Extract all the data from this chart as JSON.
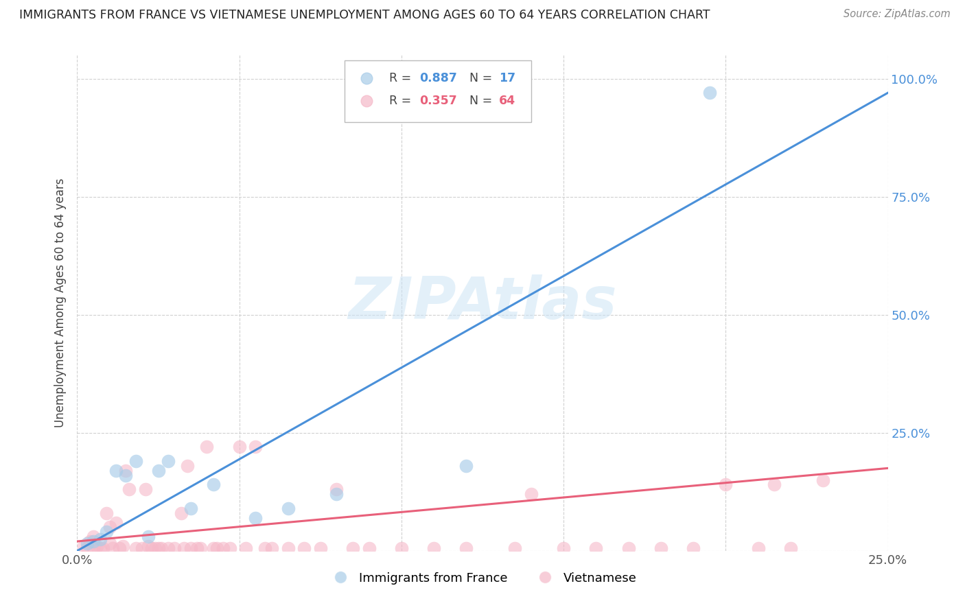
{
  "title": "IMMIGRANTS FROM FRANCE VS VIETNAMESE UNEMPLOYMENT AMONG AGES 60 TO 64 YEARS CORRELATION CHART",
  "source": "Source: ZipAtlas.com",
  "ylabel": "Unemployment Among Ages 60 to 64 years",
  "xlim": [
    0.0,
    0.25
  ],
  "ylim": [
    0.0,
    1.05
  ],
  "yticks": [
    0.0,
    0.25,
    0.5,
    0.75,
    1.0
  ],
  "ytick_labels": [
    "",
    "25.0%",
    "50.0%",
    "75.0%",
    "100.0%"
  ],
  "xticks": [
    0.0,
    0.05,
    0.1,
    0.15,
    0.2,
    0.25
  ],
  "xtick_labels": [
    "0.0%",
    "",
    "",
    "",
    "",
    "25.0%"
  ],
  "legend_label1": "Immigrants from France",
  "legend_label2": "Vietnamese",
  "legend_R1": "0.887",
  "legend_N1": "17",
  "legend_R2": "0.357",
  "legend_N2": "64",
  "color_france": "#a8cce8",
  "color_vietnam": "#f5b8c8",
  "color_line_france": "#4a90d9",
  "color_line_vietnam": "#e8607a",
  "watermark": "ZIPAtlas",
  "france_points_x": [
    0.003,
    0.005,
    0.007,
    0.009,
    0.012,
    0.015,
    0.018,
    0.022,
    0.025,
    0.028,
    0.035,
    0.042,
    0.055,
    0.065,
    0.08,
    0.12,
    0.195
  ],
  "france_points_y": [
    0.015,
    0.02,
    0.025,
    0.04,
    0.17,
    0.16,
    0.19,
    0.03,
    0.17,
    0.19,
    0.09,
    0.14,
    0.07,
    0.09,
    0.12,
    0.18,
    0.97
  ],
  "vietnam_points_x": [
    0.002,
    0.003,
    0.004,
    0.005,
    0.005,
    0.006,
    0.007,
    0.008,
    0.009,
    0.01,
    0.01,
    0.011,
    0.012,
    0.013,
    0.014,
    0.015,
    0.016,
    0.018,
    0.02,
    0.021,
    0.022,
    0.023,
    0.024,
    0.025,
    0.026,
    0.028,
    0.03,
    0.032,
    0.033,
    0.034,
    0.035,
    0.037,
    0.038,
    0.04,
    0.042,
    0.043,
    0.045,
    0.047,
    0.05,
    0.052,
    0.055,
    0.058,
    0.06,
    0.065,
    0.07,
    0.075,
    0.08,
    0.085,
    0.09,
    0.1,
    0.11,
    0.12,
    0.135,
    0.14,
    0.15,
    0.16,
    0.17,
    0.18,
    0.19,
    0.2,
    0.21,
    0.215,
    0.22,
    0.23
  ],
  "vietnam_points_y": [
    0.01,
    0.005,
    0.02,
    0.03,
    0.005,
    0.01,
    0.005,
    0.005,
    0.08,
    0.05,
    0.015,
    0.005,
    0.06,
    0.005,
    0.01,
    0.17,
    0.13,
    0.005,
    0.005,
    0.13,
    0.01,
    0.005,
    0.005,
    0.005,
    0.005,
    0.005,
    0.005,
    0.08,
    0.005,
    0.18,
    0.005,
    0.005,
    0.005,
    0.22,
    0.005,
    0.005,
    0.005,
    0.005,
    0.22,
    0.005,
    0.22,
    0.005,
    0.005,
    0.005,
    0.005,
    0.005,
    0.13,
    0.005,
    0.005,
    0.005,
    0.005,
    0.005,
    0.005,
    0.12,
    0.005,
    0.005,
    0.005,
    0.005,
    0.005,
    0.14,
    0.005,
    0.14,
    0.005,
    0.15
  ],
  "france_line_x": [
    0.0,
    0.25
  ],
  "france_line_y": [
    0.0,
    0.97
  ],
  "vietnam_line_x": [
    0.0,
    0.25
  ],
  "vietnam_line_y": [
    0.02,
    0.175
  ]
}
